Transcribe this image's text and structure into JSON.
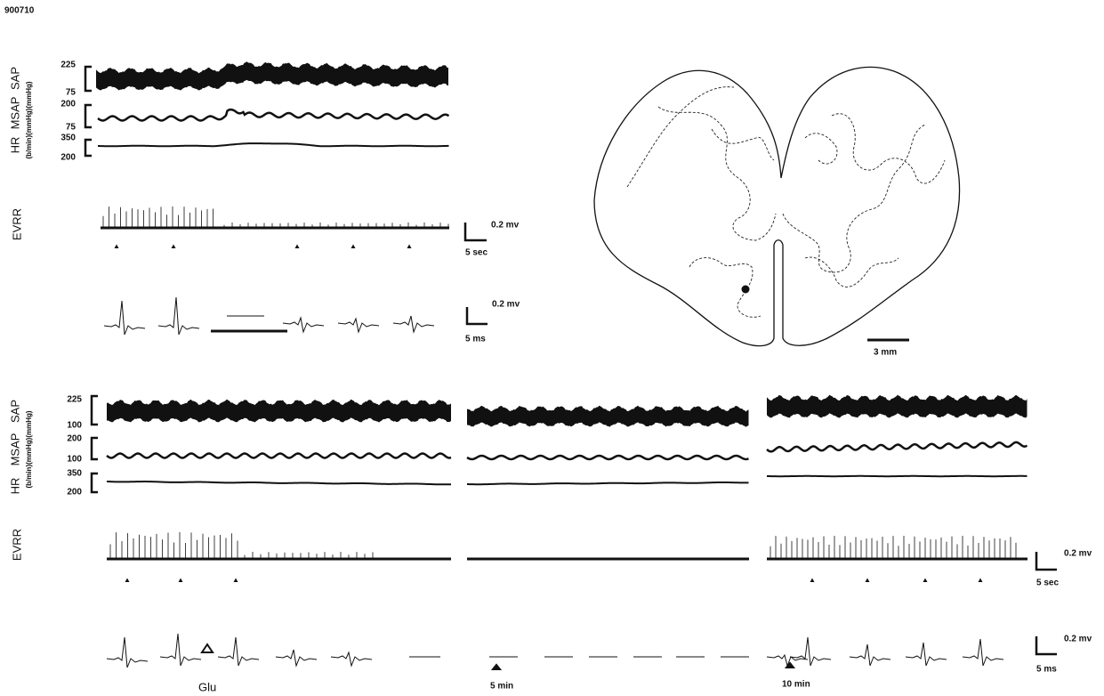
{
  "figure_id": "900710",
  "top_panel": {
    "trace_labels": [
      "SAP",
      "MSAP",
      "HR"
    ],
    "units": "(b/min)(mmHg)(mmHg)",
    "sap_range": [
      "225",
      "75"
    ],
    "msap_range": [
      "200",
      "75"
    ],
    "hr_range": [
      "350",
      "200"
    ],
    "evrr_label": "EVRR",
    "evrr_scale": {
      "amplitude": "0.2 mv",
      "time": "5 sec"
    },
    "spike_scale": {
      "amplitude": "0.2 mv",
      "time": "5 ms"
    }
  },
  "brain_section": {
    "scale": "3 mm"
  },
  "bottom_panel": {
    "trace_labels": [
      "SAP",
      "MSAP",
      "HR"
    ],
    "units": "(b/min)(mmHg)(mmHg)",
    "sap_range": [
      "225",
      "100"
    ],
    "msap_range": [
      "200",
      "100"
    ],
    "hr_range": [
      "350",
      "200"
    ],
    "evrr_label": "EVRR",
    "evrr_scale": {
      "amplitude": "0.2 mv",
      "time": "5 sec"
    },
    "spike_scale": {
      "amplitude": "0.2 mv",
      "time": "5 ms"
    },
    "markers": [
      "Glu",
      "5 min",
      "10 min"
    ]
  }
}
